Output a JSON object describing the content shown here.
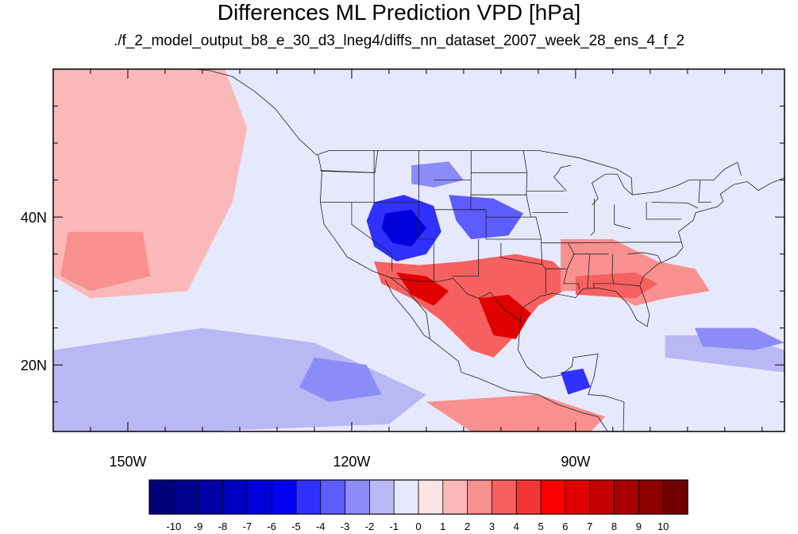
{
  "title": "Differences ML Prediction VPD [hPa]",
  "subtitle": "./f_2_model_output_b8_e_30_d3_lneg4/diffs_nn_dataset_2007_week_28_ens_4_f_2",
  "map": {
    "lon_range": [
      -160,
      -62
    ],
    "lat_range": [
      11,
      60
    ],
    "lon_ticks": [
      {
        "value": -150,
        "label": "150W"
      },
      {
        "value": -120,
        "label": "120W"
      },
      {
        "value": -90,
        "label": "90W"
      }
    ],
    "lat_ticks": [
      {
        "value": 40,
        "label": "40N"
      },
      {
        "value": 20,
        "label": "20N"
      }
    ],
    "background_color": "#e6e8fb"
  },
  "colorbar": {
    "labels": [
      "-10",
      "-9",
      "-8",
      "-7",
      "-6",
      "-5",
      "-4",
      "-3",
      "-2",
      "-1",
      "0",
      "1",
      "2",
      "3",
      "4",
      "5",
      "6",
      "7",
      "8",
      "9",
      "10"
    ],
    "colors": [
      "#00007a",
      "#00008f",
      "#0000a8",
      "#0000c2",
      "#0000db",
      "#0000f5",
      "#3030ff",
      "#5c5cff",
      "#8c8cf8",
      "#b8b8f4",
      "#e6e8fb",
      "#fde4e4",
      "#fbb8b8",
      "#f89090",
      "#f66060",
      "#f53535",
      "#ff0000",
      "#e00000",
      "#c40000",
      "#a80000",
      "#8c0000",
      "#700000"
    ]
  },
  "regions": [
    {
      "name": "basin-negative",
      "level": -5,
      "points": [
        [
          -117,
          42
        ],
        [
          -113,
          43
        ],
        [
          -109,
          41.5
        ],
        [
          -108,
          38
        ],
        [
          -110,
          35
        ],
        [
          -114,
          34
        ],
        [
          -117,
          36
        ],
        [
          -118,
          39.5
        ]
      ]
    },
    {
      "name": "basin-core",
      "level": -7,
      "points": [
        [
          -115.5,
          40.5
        ],
        [
          -112,
          41
        ],
        [
          -110,
          38.5
        ],
        [
          -112,
          36
        ],
        [
          -114.5,
          36.5
        ],
        [
          -116,
          38.5
        ]
      ]
    },
    {
      "name": "plains-negative",
      "level": -4,
      "points": [
        [
          -107,
          43
        ],
        [
          -101,
          42.5
        ],
        [
          -97,
          40.5
        ],
        [
          -99,
          37.5
        ],
        [
          -104,
          37
        ],
        [
          -106,
          39.5
        ]
      ]
    },
    {
      "name": "montana-negative",
      "level": -3,
      "points": [
        [
          -112,
          47
        ],
        [
          -107,
          47.5
        ],
        [
          -105,
          45
        ],
        [
          -109,
          44
        ],
        [
          -112,
          44.5
        ]
      ]
    },
    {
      "name": "sw-positive",
      "level": 3,
      "points": [
        [
          -117,
          34
        ],
        [
          -111,
          33.5
        ],
        [
          -105,
          34
        ],
        [
          -98,
          35
        ],
        [
          -93,
          34
        ],
        [
          -90,
          31
        ],
        [
          -95,
          28
        ],
        [
          -99,
          23
        ],
        [
          -101,
          21
        ],
        [
          -104,
          22
        ],
        [
          -108,
          26
        ],
        [
          -112,
          29
        ],
        [
          -116,
          31
        ]
      ]
    },
    {
      "name": "mexico-core",
      "level": 6,
      "points": [
        [
          -114,
          32.5
        ],
        [
          -110,
          32
        ],
        [
          -107,
          30
        ],
        [
          -109,
          28
        ],
        [
          -112,
          29.5
        ]
      ]
    },
    {
      "name": "texas-core",
      "level": 6,
      "points": [
        [
          -103,
          29
        ],
        [
          -99,
          29.5
        ],
        [
          -96,
          27
        ],
        [
          -98,
          23.5
        ],
        [
          -101,
          24
        ]
      ]
    },
    {
      "name": "southeast-positive",
      "level": 2,
      "points": [
        [
          -92,
          37
        ],
        [
          -85,
          37
        ],
        [
          -79,
          34
        ],
        [
          -74,
          33
        ],
        [
          -72,
          30
        ],
        [
          -78,
          29
        ],
        [
          -82,
          28
        ],
        [
          -86,
          30
        ],
        [
          -92,
          30
        ]
      ]
    },
    {
      "name": "gulf-positive",
      "level": 3,
      "points": [
        [
          -90,
          32
        ],
        [
          -82,
          32.5
        ],
        [
          -79,
          31
        ],
        [
          -82,
          29
        ],
        [
          -90,
          29.5
        ]
      ]
    },
    {
      "name": "north-pacific-pos",
      "level": 1,
      "points": [
        [
          -160,
          60
        ],
        [
          -137,
          60
        ],
        [
          -134,
          52
        ],
        [
          -136,
          42
        ],
        [
          -142,
          30
        ],
        [
          -155,
          29
        ],
        [
          -160,
          32
        ]
      ]
    },
    {
      "name": "hawaii-pos",
      "level": 2,
      "points": [
        [
          -158,
          38
        ],
        [
          -148,
          38
        ],
        [
          -147,
          32
        ],
        [
          -155,
          30
        ],
        [
          -159,
          32
        ]
      ]
    },
    {
      "name": "trop-pacific-neg",
      "level": -2,
      "points": [
        [
          -160,
          22
        ],
        [
          -140,
          25
        ],
        [
          -125,
          23
        ],
        [
          -110,
          16
        ],
        [
          -115,
          12
        ],
        [
          -140,
          11
        ],
        [
          -160,
          11
        ]
      ]
    },
    {
      "name": "trop-pacific-core",
      "level": -3,
      "points": [
        [
          -125,
          21
        ],
        [
          -118,
          20
        ],
        [
          -116,
          16
        ],
        [
          -123,
          15
        ],
        [
          -127,
          17
        ]
      ]
    },
    {
      "name": "caribbean-neg",
      "level": -2,
      "points": [
        [
          -78,
          24
        ],
        [
          -68,
          24
        ],
        [
          -62,
          22
        ],
        [
          -62,
          19
        ],
        [
          -70,
          20
        ],
        [
          -78,
          21
        ]
      ]
    },
    {
      "name": "atlantic-neg",
      "level": -3,
      "points": [
        [
          -74,
          25
        ],
        [
          -66,
          25
        ],
        [
          -62,
          23
        ],
        [
          -66,
          22
        ],
        [
          -73,
          22.5
        ]
      ]
    },
    {
      "name": "yucatan-neg",
      "level": -5,
      "points": [
        [
          -92,
          19
        ],
        [
          -89,
          19.5
        ],
        [
          -88,
          17
        ],
        [
          -91,
          16
        ]
      ]
    },
    {
      "name": "central-am-pos",
      "level": 2,
      "points": [
        [
          -110,
          15
        ],
        [
          -95,
          16
        ],
        [
          -86,
          13
        ],
        [
          -88,
          11
        ],
        [
          -104,
          11
        ]
      ]
    }
  ]
}
